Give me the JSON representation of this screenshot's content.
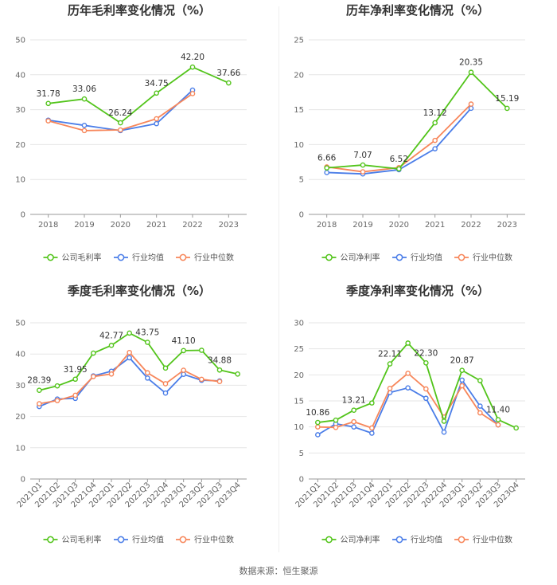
{
  "chart_data": [
    {
      "type": "line",
      "title": "历年毛利率变化情况（%）",
      "categories": [
        "2018",
        "2019",
        "2020",
        "2021",
        "2022",
        "2023"
      ],
      "ylim": [
        0,
        50
      ],
      "yticks": [
        0,
        10,
        20,
        30,
        40,
        50
      ],
      "grid": true,
      "series": [
        {
          "name": "公司毛利率",
          "color": "#52c41a",
          "values": [
            31.78,
            33.06,
            26.24,
            34.75,
            42.2,
            37.66
          ],
          "labels": [
            "31.78",
            "33.06",
            "26.24",
            "34.75",
            "42.20",
            "37.66"
          ]
        },
        {
          "name": "行业均值",
          "color": "#4a7de8",
          "values": [
            27.0,
            25.5,
            24.0,
            26.0,
            35.6,
            null
          ]
        },
        {
          "name": "行业中位数",
          "color": "#f7865a",
          "values": [
            26.8,
            24.0,
            24.2,
            27.4,
            34.6,
            null
          ]
        }
      ]
    },
    {
      "type": "line",
      "title": "历年净利率变化情况（%）",
      "categories": [
        "2018",
        "2019",
        "2020",
        "2021",
        "2022",
        "2023"
      ],
      "ylim": [
        0,
        25
      ],
      "yticks": [
        0,
        5,
        10,
        15,
        20,
        25
      ],
      "grid": true,
      "series": [
        {
          "name": "公司净利率",
          "color": "#52c41a",
          "values": [
            6.66,
            7.07,
            6.52,
            13.12,
            20.35,
            15.19
          ],
          "labels": [
            "6.66",
            "7.07",
            "6.52",
            "13.12",
            "20.35",
            "15.19"
          ]
        },
        {
          "name": "行业均值",
          "color": "#4a7de8",
          "values": [
            6.0,
            5.8,
            6.4,
            9.4,
            15.2,
            null
          ]
        },
        {
          "name": "行业中位数",
          "color": "#f7865a",
          "values": [
            6.8,
            6.1,
            6.7,
            10.6,
            15.8,
            null
          ]
        }
      ]
    },
    {
      "type": "line",
      "title": "季度毛利率变化情况（%）",
      "categories": [
        "2021Q1",
        "2021Q2",
        "2021Q3",
        "2021Q4",
        "2022Q1",
        "2022Q2",
        "2022Q3",
        "2022Q4",
        "2023Q1",
        "2023Q2",
        "2023Q3",
        "2023Q4"
      ],
      "ylim": [
        0,
        50
      ],
      "yticks": [
        0,
        10,
        20,
        30,
        40,
        50
      ],
      "grid": true,
      "series": [
        {
          "name": "公司毛利率",
          "color": "#52c41a",
          "values": [
            28.39,
            29.8,
            31.95,
            40.3,
            42.77,
            46.7,
            43.75,
            35.5,
            41.1,
            41.2,
            34.88,
            33.6
          ],
          "labels": [
            "28.39",
            null,
            "31.95",
            null,
            "42.77",
            null,
            "43.75",
            null,
            "41.10",
            null,
            "34.88",
            null
          ]
        },
        {
          "name": "行业均值",
          "color": "#4a7de8",
          "values": [
            23.2,
            25.6,
            25.8,
            33.0,
            34.5,
            38.8,
            32.3,
            27.5,
            33.5,
            31.6,
            31.4,
            null
          ]
        },
        {
          "name": "行业中位数",
          "color": "#f7865a",
          "values": [
            24.1,
            25.1,
            26.8,
            32.8,
            33.6,
            40.5,
            34.0,
            30.5,
            34.8,
            31.9,
            31.2,
            null
          ]
        }
      ]
    },
    {
      "type": "line",
      "title": "季度净利率变化情况（%）",
      "categories": [
        "2021Q1",
        "2021Q2",
        "2021Q3",
        "2021Q4",
        "2022Q1",
        "2022Q2",
        "2022Q3",
        "2022Q4",
        "2023Q1",
        "2023Q2",
        "2023Q3",
        "2023Q4"
      ],
      "ylim": [
        0,
        30
      ],
      "yticks": [
        0,
        5,
        10,
        15,
        20,
        25,
        30
      ],
      "grid": true,
      "series": [
        {
          "name": "公司净利率",
          "color": "#52c41a",
          "values": [
            10.86,
            11.3,
            13.21,
            14.6,
            22.11,
            26.1,
            22.3,
            11.1,
            20.87,
            18.9,
            11.4,
            9.8
          ],
          "labels": [
            "10.86",
            null,
            "13.21",
            null,
            "22.11",
            null,
            "22.30",
            null,
            "20.87",
            null,
            "11.40",
            null
          ]
        },
        {
          "name": "行业均值",
          "color": "#4a7de8",
          "values": [
            8.5,
            10.6,
            10.0,
            8.8,
            16.6,
            17.5,
            15.5,
            9.0,
            19.0,
            14.0,
            10.4,
            null
          ]
        },
        {
          "name": "行业中位数",
          "color": "#f7865a",
          "values": [
            10.0,
            9.9,
            11.0,
            9.8,
            17.4,
            20.3,
            17.3,
            11.9,
            17.9,
            12.7,
            10.4,
            null
          ]
        }
      ]
    }
  ],
  "source_text": "数据来源：恒生聚源"
}
